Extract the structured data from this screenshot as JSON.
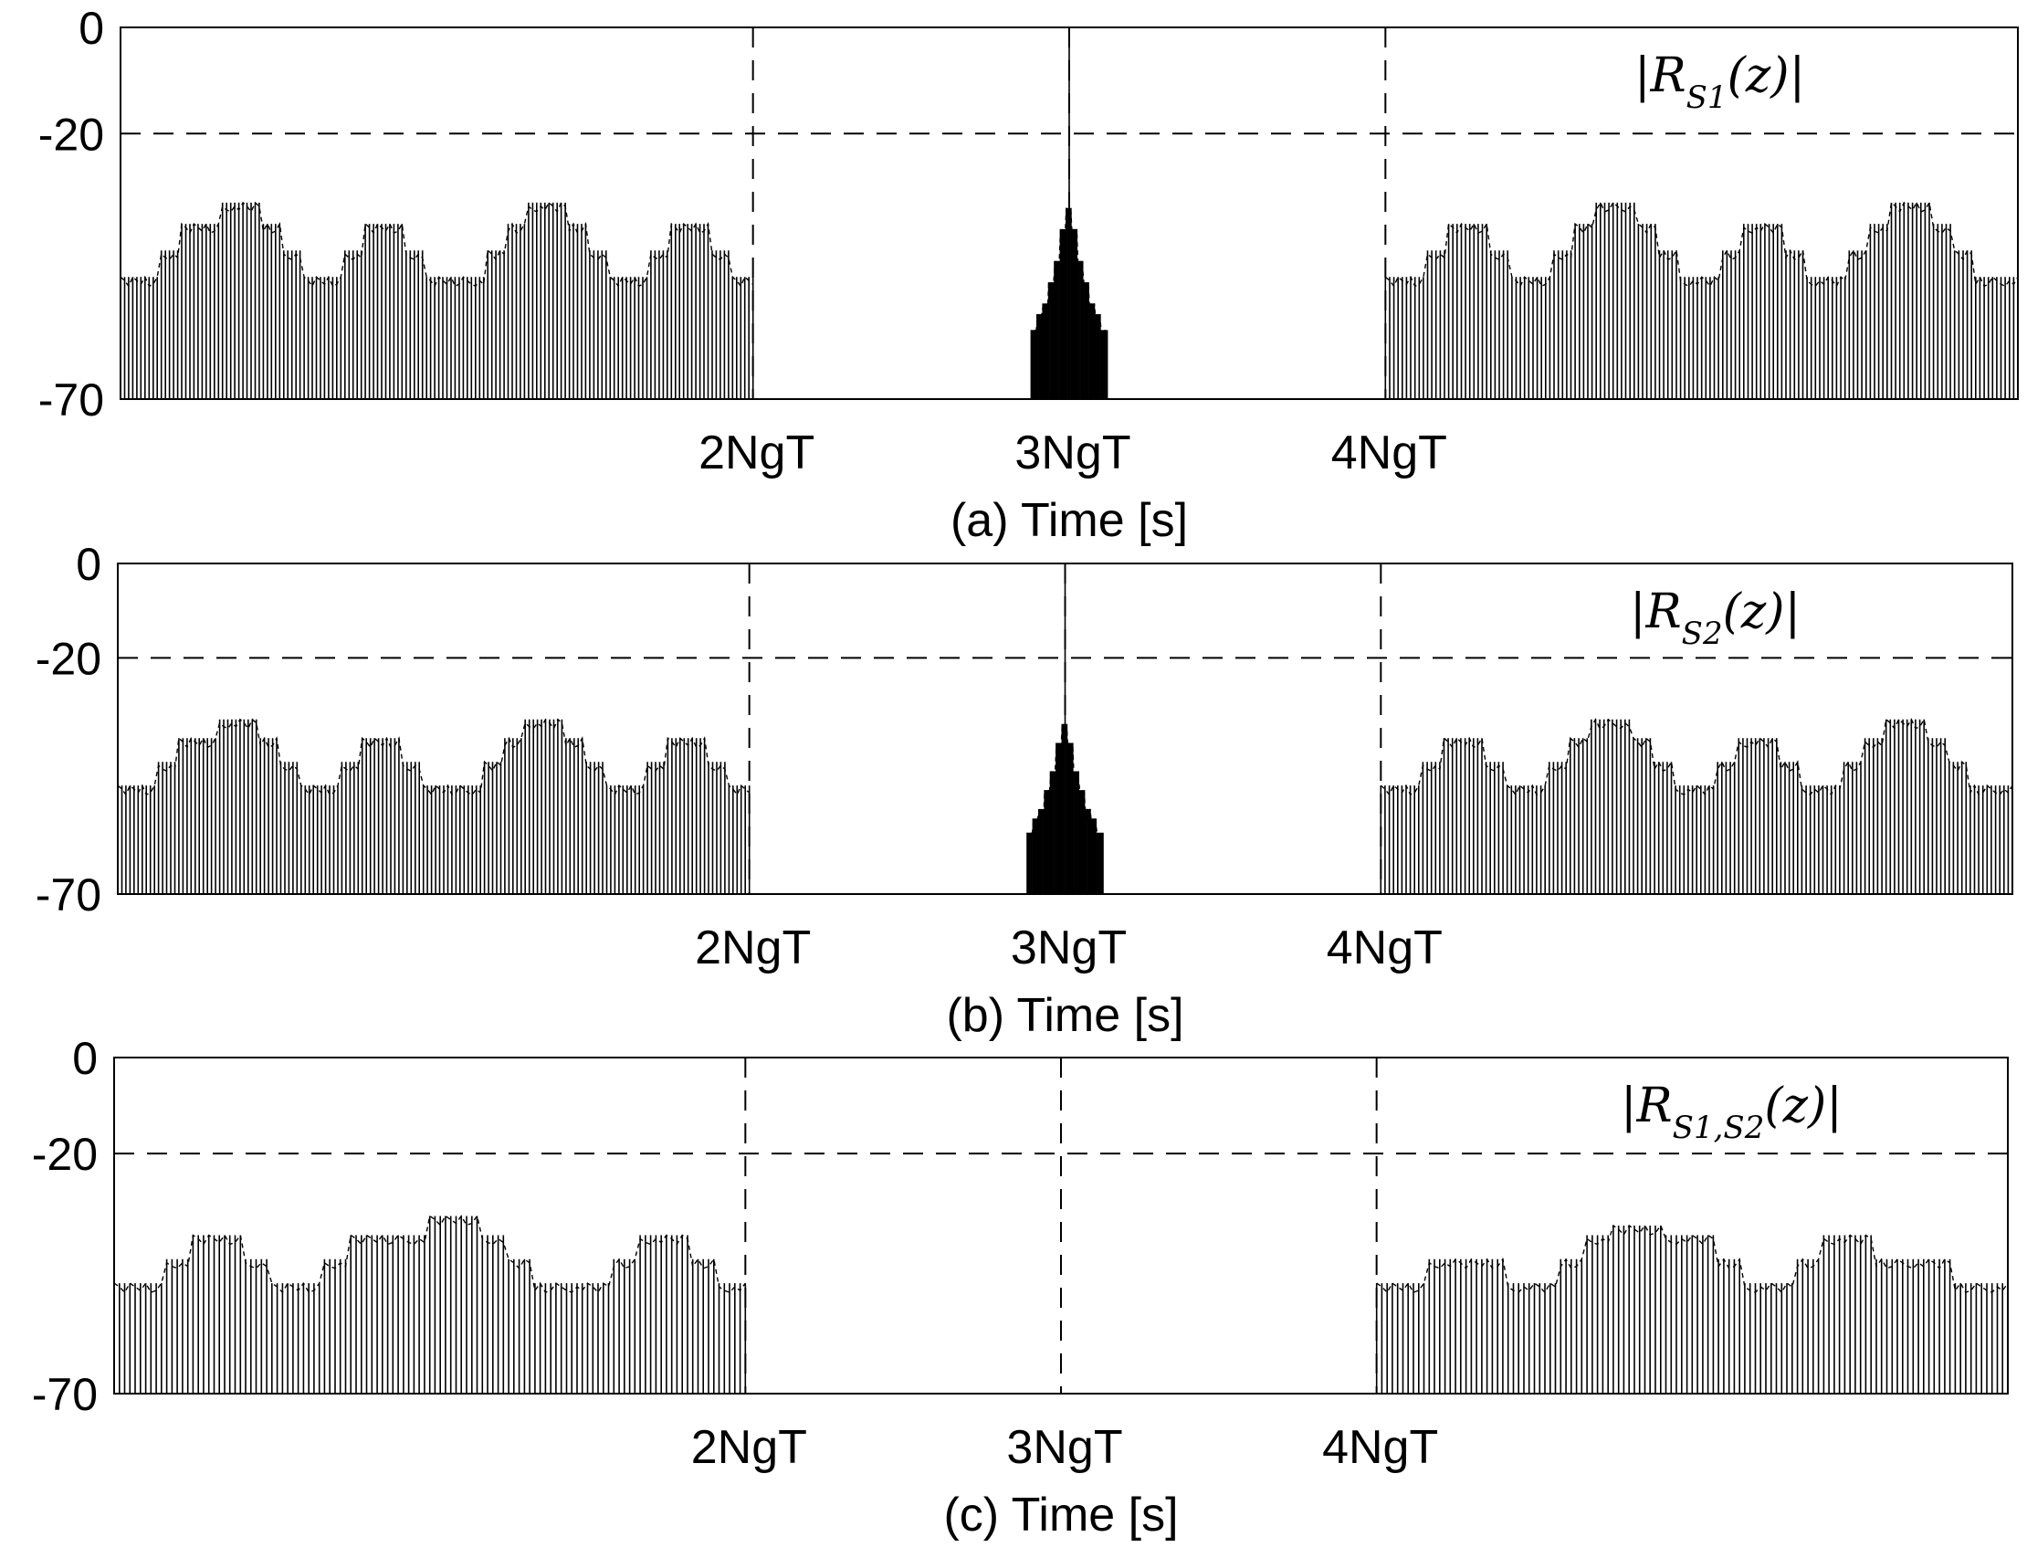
{
  "chart_data": [
    {
      "type": "bar",
      "panel": "a",
      "label": "|R_{S1}(z)|",
      "label_main": "|R",
      "label_sub": "S1",
      "label_tail": "(z)|",
      "xlabel": "(a) Time [s]",
      "ylim": [
        -70,
        0
      ],
      "yticks": [
        "0",
        "-20",
        "-70"
      ],
      "ytick_values": [
        0,
        -20,
        -70
      ],
      "xlim": [
        0,
        6
      ],
      "xticks": [
        "2NgT",
        "3NgT",
        "4NgT"
      ],
      "xtick_values": [
        2,
        3,
        4
      ],
      "reference_line": -20,
      "segments": [
        {
          "start": 0.0,
          "end": 2.0,
          "levels": [
            -47,
            -47,
            -42,
            -37,
            -37,
            -33,
            -33,
            -37,
            -42,
            -47,
            -47,
            -42,
            -37,
            -37,
            -42,
            -47,
            -47,
            -47,
            -42,
            -37,
            -33,
            -33,
            -37,
            -42,
            -47,
            -47,
            -42,
            -37,
            -37,
            -42,
            -47
          ]
        },
        {
          "start": 2.88,
          "end": 3.12,
          "levels": [
            -57,
            -54,
            -52,
            -48,
            -44,
            -38,
            -34,
            -38,
            -44,
            -48,
            -52,
            -54,
            -57
          ],
          "peak": {
            "x": 3.0,
            "value": 0
          }
        },
        {
          "start": 4.0,
          "end": 6.0,
          "levels": [
            -47,
            -47,
            -42,
            -37,
            -37,
            -42,
            -47,
            -47,
            -42,
            -37,
            -33,
            -33,
            -37,
            -42,
            -47,
            -47,
            -42,
            -37,
            -37,
            -42,
            -47,
            -47,
            -42,
            -37,
            -33,
            -33,
            -37,
            -42,
            -47,
            -47
          ]
        }
      ]
    },
    {
      "type": "bar",
      "panel": "b",
      "label": "|R_{S2}(z)|",
      "label_main": "|R",
      "label_sub": "S2",
      "label_tail": "(z)|",
      "xlabel": "(b) Time [s]",
      "ylim": [
        -70,
        0
      ],
      "yticks": [
        "0",
        "-20",
        "-70"
      ],
      "ytick_values": [
        0,
        -20,
        -70
      ],
      "xlim": [
        0,
        6
      ],
      "xticks": [
        "2NgT",
        "3NgT",
        "4NgT"
      ],
      "xtick_values": [
        2,
        3,
        4
      ],
      "reference_line": -20,
      "segments": [
        {
          "start": 0.0,
          "end": 2.0,
          "levels": [
            -47,
            -47,
            -42,
            -37,
            -37,
            -33,
            -33,
            -37,
            -42,
            -47,
            -47,
            -42,
            -37,
            -37,
            -42,
            -47,
            -47,
            -47,
            -42,
            -37,
            -33,
            -33,
            -37,
            -42,
            -47,
            -47,
            -42,
            -37,
            -37,
            -42,
            -47
          ]
        },
        {
          "start": 2.88,
          "end": 3.12,
          "levels": [
            -57,
            -54,
            -52,
            -48,
            -44,
            -38,
            -34,
            -38,
            -44,
            -48,
            -52,
            -54,
            -57
          ],
          "peak": {
            "x": 3.0,
            "value": 0
          }
        },
        {
          "start": 4.0,
          "end": 6.0,
          "levels": [
            -47,
            -47,
            -42,
            -37,
            -37,
            -42,
            -47,
            -47,
            -42,
            -37,
            -33,
            -33,
            -37,
            -42,
            -47,
            -47,
            -42,
            -37,
            -37,
            -42,
            -47,
            -47,
            -42,
            -37,
            -33,
            -33,
            -37,
            -42,
            -47,
            -47
          ]
        }
      ]
    },
    {
      "type": "bar",
      "panel": "c",
      "label": "|R_{S1,S2}(z)|",
      "label_main": "|R",
      "label_sub": "S1,S2",
      "label_tail": "(z)|",
      "xlabel": "(c) Time [s]",
      "ylim": [
        -70,
        0
      ],
      "yticks": [
        "0",
        "-20",
        "-70"
      ],
      "ytick_values": [
        0,
        -20,
        -70
      ],
      "xlim": [
        0,
        6
      ],
      "xticks": [
        "2NgT",
        "3NgT",
        "4NgT"
      ],
      "xtick_values": [
        2,
        3,
        4
      ],
      "reference_line": -20,
      "segments": [
        {
          "start": 0.0,
          "end": 2.0,
          "levels": [
            -47,
            -47,
            -42,
            -37,
            -37,
            -42,
            -47,
            -47,
            -42,
            -37,
            -37,
            -37,
            -33,
            -33,
            -37,
            -42,
            -47,
            -47,
            -47,
            -42,
            -37,
            -37,
            -42,
            -47
          ]
        },
        {
          "start": 4.0,
          "end": 6.0,
          "levels": [
            -47,
            -47,
            -42,
            -42,
            -42,
            -47,
            -47,
            -42,
            -37,
            -35,
            -35,
            -37,
            -37,
            -42,
            -47,
            -47,
            -42,
            -37,
            -37,
            -42,
            -42,
            -42,
            -47,
            -47
          ]
        }
      ]
    }
  ]
}
